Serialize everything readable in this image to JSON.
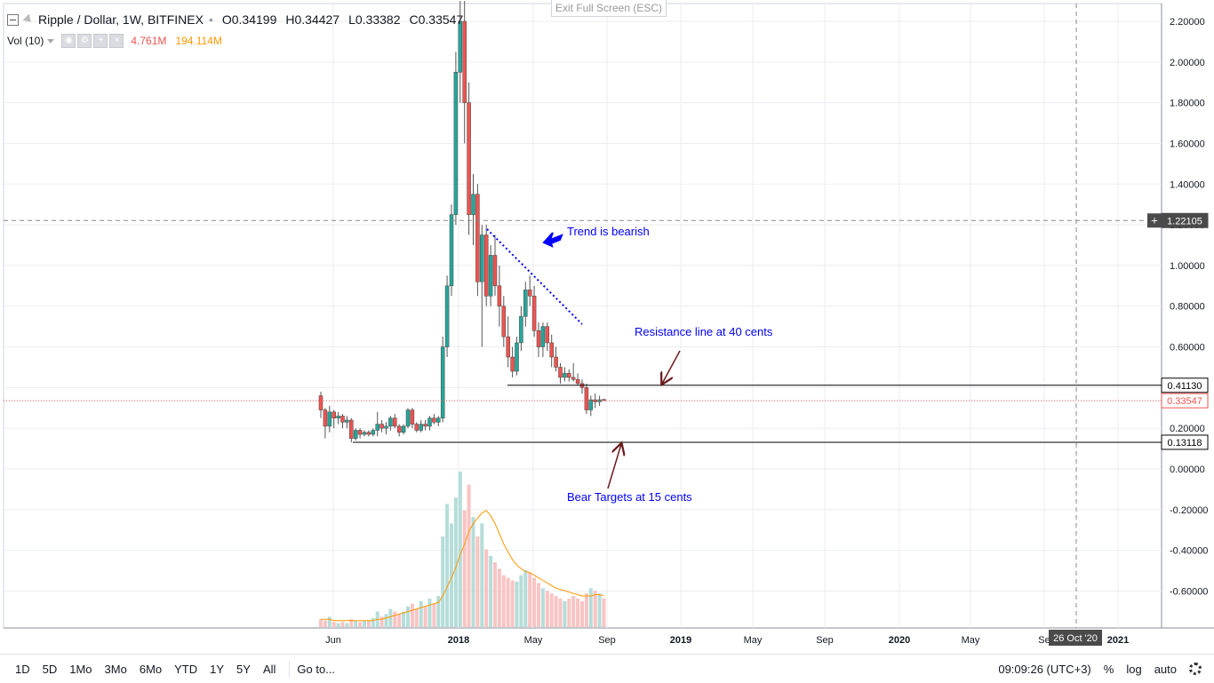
{
  "header": {
    "title": "Ripple / Dollar, 1W, BITFINEX",
    "open": "0.34199",
    "high": "0.34427",
    "low": "0.33382",
    "close": "0.33547",
    "open_label": "O",
    "high_label": "H",
    "low_label": "L",
    "close_label": "C"
  },
  "volume_indicator": {
    "title": "Vol (10)",
    "value": "4.761M",
    "ma_value": "194.114M"
  },
  "exit_fullscreen": "Exit Full Screen (ESC)",
  "bottom_bar": {
    "ranges": [
      "1D",
      "5D",
      "1Mo",
      "3Mo",
      "6Mo",
      "YTD",
      "1Y",
      "5Y",
      "All"
    ],
    "goto": "Go to...",
    "time": "09:09:26 (UTC+3)",
    "percent": "%",
    "log": "log",
    "auto": "auto"
  },
  "colors": {
    "up": "#26a69a",
    "down": "#ef5350",
    "annotation": "#0000ff",
    "arrow": "#6b1a1a",
    "grid": "#eceef2"
  },
  "icons": [
    "collapse-icon",
    "flag-icon",
    "settings-icon",
    "plus-icon",
    "close-icon",
    "eye-icon",
    "gear-icon"
  ],
  "chart_data": {
    "type": "candlestick",
    "interval": "1W",
    "y_axis": {
      "range": [
        -0.78,
        2.3
      ],
      "ticks": [
        2.2,
        2.0,
        1.8,
        1.6,
        1.4,
        1.2,
        1.0,
        0.8,
        0.6,
        0.4,
        0.2,
        0.0,
        -0.2,
        -0.4,
        -0.6
      ],
      "tick_labels": [
        "2.20000",
        "2.00000",
        "1.80000",
        "1.60000",
        "1.40000",
        "1.20000",
        "1.00000",
        "0.80000",
        "0.60000",
        "0.40000",
        "0.20000",
        "0.00000",
        "-0.20000",
        "-0.40000",
        "-0.60000"
      ]
    },
    "x_axis": {
      "labels": [
        "Jun",
        "2018",
        "May",
        "Sep",
        "2019",
        "May",
        "Sep",
        "2020",
        "May",
        "Se",
        "2021"
      ],
      "crosshair_date": "26 Oct '20"
    },
    "price_labels": {
      "crosshair": "1.22105",
      "resistance": "0.41130",
      "current": "0.33547",
      "support": "0.13118"
    },
    "horizontal_lines": {
      "crosshair": 1.22105,
      "resistance": 0.4113,
      "current": 0.33547,
      "support": 0.13118
    },
    "candles": [
      [
        0.36,
        0.38,
        0.25,
        0.29
      ],
      [
        0.29,
        0.3,
        0.15,
        0.21
      ],
      [
        0.21,
        0.31,
        0.18,
        0.28
      ],
      [
        0.28,
        0.29,
        0.2,
        0.25
      ],
      [
        0.25,
        0.28,
        0.22,
        0.26
      ],
      [
        0.26,
        0.27,
        0.2,
        0.23
      ],
      [
        0.23,
        0.26,
        0.2,
        0.24
      ],
      [
        0.24,
        0.25,
        0.13,
        0.15
      ],
      [
        0.15,
        0.2,
        0.14,
        0.19
      ],
      [
        0.19,
        0.2,
        0.15,
        0.17
      ],
      [
        0.17,
        0.19,
        0.16,
        0.18
      ],
      [
        0.18,
        0.19,
        0.16,
        0.17
      ],
      [
        0.17,
        0.2,
        0.16,
        0.19
      ],
      [
        0.19,
        0.28,
        0.16,
        0.22
      ],
      [
        0.22,
        0.24,
        0.18,
        0.2
      ],
      [
        0.2,
        0.23,
        0.17,
        0.21
      ],
      [
        0.21,
        0.26,
        0.19,
        0.25
      ],
      [
        0.25,
        0.27,
        0.2,
        0.21
      ],
      [
        0.21,
        0.22,
        0.16,
        0.18
      ],
      [
        0.18,
        0.22,
        0.17,
        0.21
      ],
      [
        0.21,
        0.3,
        0.2,
        0.29
      ],
      [
        0.29,
        0.3,
        0.2,
        0.22
      ],
      [
        0.22,
        0.23,
        0.18,
        0.19
      ],
      [
        0.19,
        0.24,
        0.18,
        0.22
      ],
      [
        0.22,
        0.24,
        0.19,
        0.21
      ],
      [
        0.21,
        0.26,
        0.19,
        0.25
      ],
      [
        0.25,
        0.27,
        0.22,
        0.23
      ],
      [
        0.23,
        0.26,
        0.21,
        0.25
      ],
      [
        0.25,
        0.65,
        0.23,
        0.6
      ],
      [
        0.6,
        0.95,
        0.55,
        0.9
      ],
      [
        0.9,
        1.3,
        0.85,
        1.25
      ],
      [
        1.25,
        2.05,
        1.2,
        1.95
      ],
      [
        1.95,
        2.3,
        1.8,
        2.2
      ],
      [
        2.2,
        2.3,
        1.6,
        1.8
      ],
      [
        1.8,
        1.9,
        1.15,
        1.25
      ],
      [
        1.25,
        1.45,
        1.1,
        1.35
      ],
      [
        1.35,
        1.4,
        0.85,
        0.92
      ],
      [
        0.92,
        1.2,
        0.6,
        1.15
      ],
      [
        1.15,
        1.2,
        0.8,
        0.85
      ],
      [
        0.85,
        1.1,
        0.8,
        1.05
      ],
      [
        1.05,
        1.15,
        0.85,
        0.9
      ],
      [
        0.9,
        1.0,
        0.7,
        0.8
      ],
      [
        0.8,
        0.85,
        0.6,
        0.65
      ],
      [
        0.65,
        0.75,
        0.5,
        0.55
      ],
      [
        0.55,
        0.6,
        0.45,
        0.48
      ],
      [
        0.48,
        0.65,
        0.46,
        0.62
      ],
      [
        0.62,
        0.8,
        0.58,
        0.75
      ],
      [
        0.75,
        0.92,
        0.7,
        0.88
      ],
      [
        0.88,
        0.95,
        0.8,
        0.85
      ],
      [
        0.85,
        0.9,
        0.65,
        0.68
      ],
      [
        0.68,
        0.72,
        0.55,
        0.6
      ],
      [
        0.6,
        0.72,
        0.55,
        0.7
      ],
      [
        0.7,
        0.72,
        0.58,
        0.62
      ],
      [
        0.62,
        0.66,
        0.5,
        0.55
      ],
      [
        0.55,
        0.6,
        0.48,
        0.5
      ],
      [
        0.5,
        0.52,
        0.42,
        0.45
      ],
      [
        0.45,
        0.5,
        0.43,
        0.47
      ],
      [
        0.47,
        0.49,
        0.43,
        0.45
      ],
      [
        0.45,
        0.52,
        0.43,
        0.44
      ],
      [
        0.44,
        0.47,
        0.41,
        0.42
      ],
      [
        0.42,
        0.44,
        0.37,
        0.4
      ],
      [
        0.4,
        0.42,
        0.27,
        0.29
      ],
      [
        0.29,
        0.36,
        0.26,
        0.34
      ],
      [
        0.34,
        0.37,
        0.3,
        0.33
      ],
      [
        0.33,
        0.36,
        0.31,
        0.34
      ],
      [
        0.34199,
        0.34427,
        0.33382,
        0.33547
      ]
    ],
    "volume": [
      6,
      5,
      8,
      4,
      3,
      4,
      3,
      6,
      5,
      4,
      5,
      5,
      7,
      12,
      8,
      10,
      14,
      12,
      10,
      12,
      16,
      18,
      14,
      20,
      16,
      22,
      18,
      24,
      70,
      95,
      80,
      100,
      120,
      90,
      110,
      85,
      70,
      80,
      60,
      55,
      50,
      45,
      40,
      38,
      36,
      35,
      40,
      44,
      42,
      38,
      34,
      30,
      28,
      26,
      24,
      22,
      20,
      22,
      24,
      22,
      20,
      26,
      30,
      28,
      26,
      22
    ],
    "volume_ma": [
      6,
      6,
      6,
      5,
      5,
      5,
      5,
      5,
      5,
      5,
      5,
      5,
      5,
      6,
      6,
      7,
      8,
      9,
      10,
      11,
      12,
      13,
      14,
      15,
      16,
      17,
      18,
      19,
      24,
      31,
      38,
      46,
      56,
      64,
      74,
      80,
      84,
      88,
      90,
      86,
      80,
      72,
      64,
      58,
      52,
      48,
      45,
      43,
      42,
      40,
      38,
      36,
      34,
      32,
      30,
      29,
      28,
      27,
      26,
      25,
      24,
      24,
      24,
      25,
      25,
      24
    ],
    "annotations": [
      {
        "text": "Trend is bearish",
        "type": "text"
      },
      {
        "text": "Resistance line at 40 cents",
        "type": "text"
      },
      {
        "text": "Bear Targets at 15 cents",
        "type": "text"
      }
    ]
  }
}
